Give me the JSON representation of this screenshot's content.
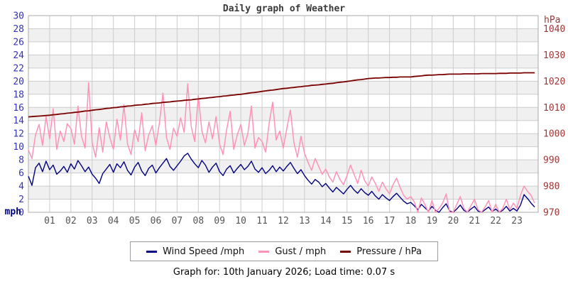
{
  "title": "Daily graph of Weather",
  "footer": "Graph for: 10th January 2026; Load time: 0.07 s",
  "chart_data": {
    "type": "line",
    "title": "Daily graph of Weather",
    "sample_interval_minutes": 10,
    "x_axis": {
      "unit": "hours of day",
      "range": [
        0,
        24
      ],
      "tick_labels": [
        "01",
        "02",
        "03",
        "04",
        "05",
        "06",
        "07",
        "08",
        "09",
        "10",
        "11",
        "12",
        "13",
        "14",
        "15",
        "16",
        "17",
        "18",
        "19",
        "20",
        "21",
        "22",
        "23"
      ],
      "tick_color": "#555555"
    },
    "left_axis": {
      "unit_label": "mph",
      "min": 0,
      "max": 30,
      "tick_step": 2,
      "tick_color": "#3333b3",
      "unit_color": "#000080"
    },
    "right_axis": {
      "unit_label": "hPa",
      "min": 970,
      "max": 1045,
      "ticks": [
        1040,
        1030,
        1020,
        1010,
        1000,
        990,
        980,
        970
      ],
      "tick_color": "#a03636"
    },
    "grid": {
      "line_color": "#cccccc",
      "border_color": "#aaaaaa",
      "band_colors": [
        "#ffffff",
        "#f0f0f0"
      ]
    },
    "legend": {
      "position": "bottom",
      "border_color": "#999999"
    },
    "series": [
      {
        "name": "Wind Speed /mph",
        "slug": "wind-speed",
        "axis": "left",
        "color": "#000080",
        "width": 1.4,
        "values": [
          5.5,
          4.1,
          6.8,
          7.5,
          6.2,
          7.8,
          6.5,
          7.2,
          5.8,
          6.3,
          7.0,
          6.1,
          7.4,
          6.6,
          7.9,
          7.1,
          6.2,
          6.9,
          5.8,
          5.2,
          4.4,
          5.9,
          6.6,
          7.3,
          6.1,
          7.4,
          6.8,
          7.7,
          6.4,
          5.7,
          6.9,
          7.6,
          6.3,
          5.6,
          6.7,
          7.2,
          6.0,
          6.8,
          7.5,
          8.2,
          7.0,
          6.4,
          7.1,
          7.8,
          8.6,
          9.0,
          8.1,
          7.4,
          6.8,
          7.9,
          7.2,
          6.1,
          6.9,
          7.5,
          6.2,
          5.6,
          6.6,
          7.1,
          6.0,
          6.7,
          7.3,
          6.5,
          7.0,
          7.8,
          6.6,
          6.1,
          6.8,
          5.9,
          6.4,
          7.1,
          6.2,
          6.9,
          6.3,
          7.0,
          7.6,
          6.7,
          5.9,
          6.5,
          5.6,
          4.9,
          4.3,
          5.0,
          4.6,
          3.9,
          4.4,
          3.7,
          3.1,
          3.8,
          3.3,
          2.8,
          3.5,
          4.1,
          3.4,
          2.9,
          3.6,
          3.0,
          2.6,
          3.2,
          2.5,
          2.0,
          2.7,
          2.2,
          1.8,
          2.4,
          2.9,
          2.3,
          1.7,
          1.3,
          1.5,
          1.0,
          0.4,
          1.2,
          0.7,
          0.2,
          0.9,
          0.3,
          0.0,
          0.7,
          1.3,
          0.2,
          0.0,
          0.5,
          1.1,
          0.3,
          0.0,
          0.5,
          0.9,
          0.2,
          0.0,
          0.4,
          0.8,
          0.1,
          0.5,
          0.0,
          0.3,
          0.9,
          0.2,
          0.6,
          0.2,
          1.1,
          2.7,
          2.1,
          1.4,
          0.8
        ]
      },
      {
        "name": "Gust / mph",
        "slug": "gust",
        "axis": "left",
        "color": "#ff92b8",
        "width": 1.5,
        "values": [
          9.5,
          8.2,
          11.8,
          13.4,
          10.2,
          14.6,
          11.2,
          15.8,
          9.6,
          12.4,
          10.8,
          13.5,
          12.8,
          10.4,
          16.2,
          11.6,
          9.8,
          19.8,
          10.6,
          8.4,
          12.9,
          9.2,
          13.8,
          11.4,
          9.6,
          14.2,
          11.0,
          16.4,
          10.4,
          8.8,
          12.6,
          10.8,
          15.2,
          9.4,
          11.8,
          13.2,
          10.2,
          13.6,
          18.2,
          11.4,
          9.6,
          12.8,
          11.6,
          14.4,
          12.2,
          19.6,
          13.0,
          10.8,
          17.8,
          12.4,
          10.6,
          13.8,
          11.2,
          14.6,
          10.4,
          8.8,
          12.6,
          15.4,
          9.6,
          11.8,
          13.4,
          10.2,
          12.0,
          16.2,
          9.8,
          11.4,
          10.8,
          9.2,
          13.6,
          16.8,
          11.0,
          12.4,
          9.8,
          12.8,
          15.6,
          10.6,
          8.4,
          11.6,
          9.0,
          7.6,
          6.4,
          8.2,
          7.0,
          5.8,
          6.6,
          5.4,
          4.6,
          6.2,
          5.0,
          4.2,
          5.6,
          7.2,
          5.8,
          4.4,
          6.4,
          4.8,
          4.0,
          5.4,
          4.4,
          3.2,
          4.6,
          3.6,
          2.8,
          4.2,
          5.2,
          3.8,
          2.6,
          2.0,
          2.4,
          1.6,
          0.0,
          2.2,
          1.2,
          0.0,
          1.8,
          0.0,
          0.6,
          1.4,
          2.8,
          0.0,
          0.0,
          1.2,
          2.4,
          0.6,
          0.0,
          1.0,
          2.0,
          0.4,
          0.0,
          0.8,
          1.8,
          0.0,
          1.2,
          0.0,
          0.6,
          2.0,
          0.4,
          1.4,
          0.6,
          2.6,
          4.0,
          3.2,
          2.6,
          1.4
        ]
      },
      {
        "name": "Pressure / hPa",
        "slug": "pressure",
        "axis": "right",
        "color": "#7a0000",
        "width": 1.8,
        "values": [
          1006.4,
          1006.5,
          1006.6,
          1006.7,
          1006.8,
          1006.9,
          1007.0,
          1007.2,
          1007.3,
          1007.5,
          1007.6,
          1007.8,
          1007.9,
          1008.1,
          1008.2,
          1008.4,
          1008.6,
          1008.7,
          1008.9,
          1009.1,
          1009.2,
          1009.4,
          1009.6,
          1009.7,
          1009.9,
          1010.0,
          1010.2,
          1010.3,
          1010.5,
          1010.6,
          1010.8,
          1010.9,
          1011.0,
          1011.2,
          1011.3,
          1011.5,
          1011.6,
          1011.7,
          1011.9,
          1012.0,
          1012.1,
          1012.3,
          1012.4,
          1012.5,
          1012.7,
          1012.8,
          1012.9,
          1013.1,
          1013.2,
          1013.4,
          1013.5,
          1013.7,
          1013.8,
          1014.0,
          1014.1,
          1014.3,
          1014.4,
          1014.6,
          1014.7,
          1014.9,
          1015.0,
          1015.2,
          1015.4,
          1015.6,
          1015.7,
          1015.9,
          1016.1,
          1016.3,
          1016.5,
          1016.6,
          1016.8,
          1017.0,
          1017.2,
          1017.3,
          1017.5,
          1017.6,
          1017.8,
          1017.9,
          1018.1,
          1018.2,
          1018.4,
          1018.5,
          1018.6,
          1018.8,
          1018.9,
          1019.1,
          1019.2,
          1019.4,
          1019.6,
          1019.7,
          1019.9,
          1020.1,
          1020.3,
          1020.5,
          1020.6,
          1020.8,
          1021.0,
          1021.1,
          1021.2,
          1021.2,
          1021.3,
          1021.4,
          1021.4,
          1021.5,
          1021.5,
          1021.6,
          1021.6,
          1021.6,
          1021.6,
          1021.8,
          1021.9,
          1022.0,
          1022.2,
          1022.3,
          1022.3,
          1022.4,
          1022.5,
          1022.5,
          1022.6,
          1022.7,
          1022.7,
          1022.7,
          1022.7,
          1022.8,
          1022.8,
          1022.8,
          1022.8,
          1022.8,
          1022.9,
          1022.9,
          1022.9,
          1022.9,
          1022.9,
          1023.0,
          1023.0,
          1023.0,
          1023.1,
          1023.1,
          1023.1,
          1023.1,
          1023.2,
          1023.2,
          1023.2,
          1023.2
        ]
      }
    ]
  }
}
